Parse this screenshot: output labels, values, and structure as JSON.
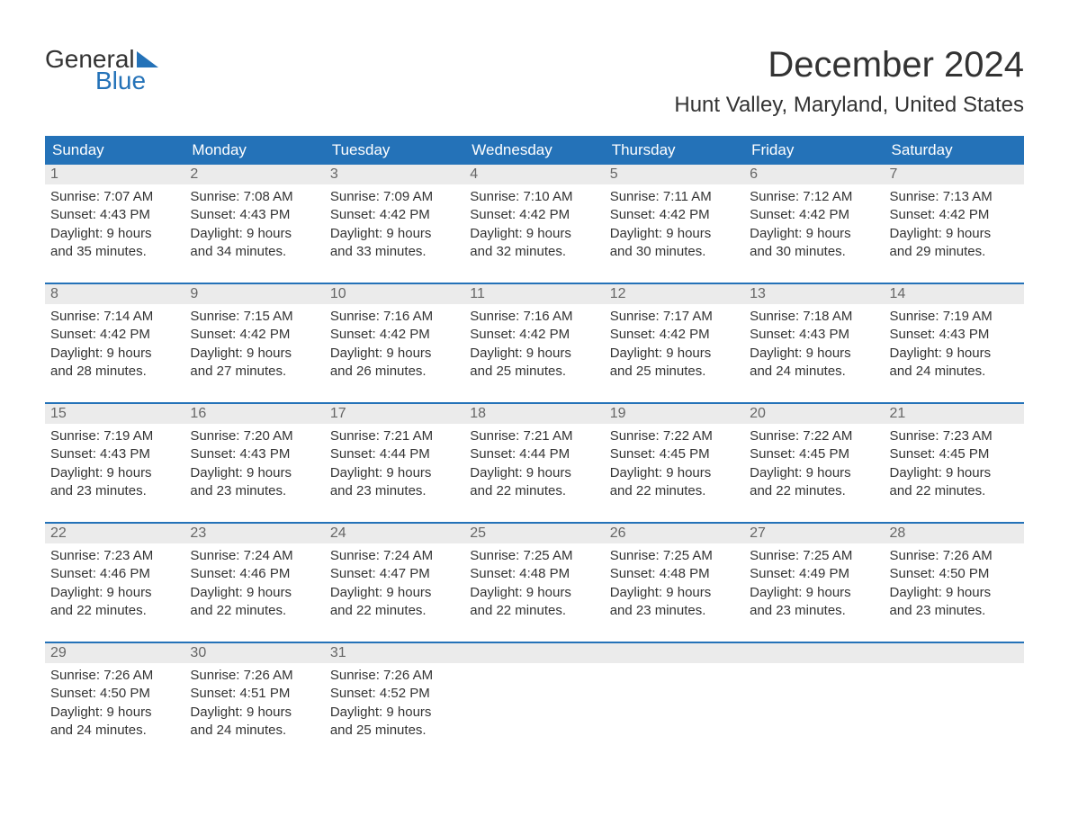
{
  "logo": {
    "word1": "General",
    "word2": "Blue",
    "brand_color": "#2472b8"
  },
  "header": {
    "month_title": "December 2024",
    "location": "Hunt Valley, Maryland, United States"
  },
  "colors": {
    "header_bg": "#2472b8",
    "header_text": "#ffffff",
    "day_number_bg": "#ebebeb",
    "border": "#2472b8",
    "text": "#333333",
    "muted_text": "#666666",
    "background": "#ffffff"
  },
  "weekdays": [
    "Sunday",
    "Monday",
    "Tuesday",
    "Wednesday",
    "Thursday",
    "Friday",
    "Saturday"
  ],
  "weeks": [
    [
      {
        "day": "1",
        "sunrise": "Sunrise: 7:07 AM",
        "sunset": "Sunset: 4:43 PM",
        "daylight1": "Daylight: 9 hours",
        "daylight2": "and 35 minutes."
      },
      {
        "day": "2",
        "sunrise": "Sunrise: 7:08 AM",
        "sunset": "Sunset: 4:43 PM",
        "daylight1": "Daylight: 9 hours",
        "daylight2": "and 34 minutes."
      },
      {
        "day": "3",
        "sunrise": "Sunrise: 7:09 AM",
        "sunset": "Sunset: 4:42 PM",
        "daylight1": "Daylight: 9 hours",
        "daylight2": "and 33 minutes."
      },
      {
        "day": "4",
        "sunrise": "Sunrise: 7:10 AM",
        "sunset": "Sunset: 4:42 PM",
        "daylight1": "Daylight: 9 hours",
        "daylight2": "and 32 minutes."
      },
      {
        "day": "5",
        "sunrise": "Sunrise: 7:11 AM",
        "sunset": "Sunset: 4:42 PM",
        "daylight1": "Daylight: 9 hours",
        "daylight2": "and 30 minutes."
      },
      {
        "day": "6",
        "sunrise": "Sunrise: 7:12 AM",
        "sunset": "Sunset: 4:42 PM",
        "daylight1": "Daylight: 9 hours",
        "daylight2": "and 30 minutes."
      },
      {
        "day": "7",
        "sunrise": "Sunrise: 7:13 AM",
        "sunset": "Sunset: 4:42 PM",
        "daylight1": "Daylight: 9 hours",
        "daylight2": "and 29 minutes."
      }
    ],
    [
      {
        "day": "8",
        "sunrise": "Sunrise: 7:14 AM",
        "sunset": "Sunset: 4:42 PM",
        "daylight1": "Daylight: 9 hours",
        "daylight2": "and 28 minutes."
      },
      {
        "day": "9",
        "sunrise": "Sunrise: 7:15 AM",
        "sunset": "Sunset: 4:42 PM",
        "daylight1": "Daylight: 9 hours",
        "daylight2": "and 27 minutes."
      },
      {
        "day": "10",
        "sunrise": "Sunrise: 7:16 AM",
        "sunset": "Sunset: 4:42 PM",
        "daylight1": "Daylight: 9 hours",
        "daylight2": "and 26 minutes."
      },
      {
        "day": "11",
        "sunrise": "Sunrise: 7:16 AM",
        "sunset": "Sunset: 4:42 PM",
        "daylight1": "Daylight: 9 hours",
        "daylight2": "and 25 minutes."
      },
      {
        "day": "12",
        "sunrise": "Sunrise: 7:17 AM",
        "sunset": "Sunset: 4:42 PM",
        "daylight1": "Daylight: 9 hours",
        "daylight2": "and 25 minutes."
      },
      {
        "day": "13",
        "sunrise": "Sunrise: 7:18 AM",
        "sunset": "Sunset: 4:43 PM",
        "daylight1": "Daylight: 9 hours",
        "daylight2": "and 24 minutes."
      },
      {
        "day": "14",
        "sunrise": "Sunrise: 7:19 AM",
        "sunset": "Sunset: 4:43 PM",
        "daylight1": "Daylight: 9 hours",
        "daylight2": "and 24 minutes."
      }
    ],
    [
      {
        "day": "15",
        "sunrise": "Sunrise: 7:19 AM",
        "sunset": "Sunset: 4:43 PM",
        "daylight1": "Daylight: 9 hours",
        "daylight2": "and 23 minutes."
      },
      {
        "day": "16",
        "sunrise": "Sunrise: 7:20 AM",
        "sunset": "Sunset: 4:43 PM",
        "daylight1": "Daylight: 9 hours",
        "daylight2": "and 23 minutes."
      },
      {
        "day": "17",
        "sunrise": "Sunrise: 7:21 AM",
        "sunset": "Sunset: 4:44 PM",
        "daylight1": "Daylight: 9 hours",
        "daylight2": "and 23 minutes."
      },
      {
        "day": "18",
        "sunrise": "Sunrise: 7:21 AM",
        "sunset": "Sunset: 4:44 PM",
        "daylight1": "Daylight: 9 hours",
        "daylight2": "and 22 minutes."
      },
      {
        "day": "19",
        "sunrise": "Sunrise: 7:22 AM",
        "sunset": "Sunset: 4:45 PM",
        "daylight1": "Daylight: 9 hours",
        "daylight2": "and 22 minutes."
      },
      {
        "day": "20",
        "sunrise": "Sunrise: 7:22 AM",
        "sunset": "Sunset: 4:45 PM",
        "daylight1": "Daylight: 9 hours",
        "daylight2": "and 22 minutes."
      },
      {
        "day": "21",
        "sunrise": "Sunrise: 7:23 AM",
        "sunset": "Sunset: 4:45 PM",
        "daylight1": "Daylight: 9 hours",
        "daylight2": "and 22 minutes."
      }
    ],
    [
      {
        "day": "22",
        "sunrise": "Sunrise: 7:23 AM",
        "sunset": "Sunset: 4:46 PM",
        "daylight1": "Daylight: 9 hours",
        "daylight2": "and 22 minutes."
      },
      {
        "day": "23",
        "sunrise": "Sunrise: 7:24 AM",
        "sunset": "Sunset: 4:46 PM",
        "daylight1": "Daylight: 9 hours",
        "daylight2": "and 22 minutes."
      },
      {
        "day": "24",
        "sunrise": "Sunrise: 7:24 AM",
        "sunset": "Sunset: 4:47 PM",
        "daylight1": "Daylight: 9 hours",
        "daylight2": "and 22 minutes."
      },
      {
        "day": "25",
        "sunrise": "Sunrise: 7:25 AM",
        "sunset": "Sunset: 4:48 PM",
        "daylight1": "Daylight: 9 hours",
        "daylight2": "and 22 minutes."
      },
      {
        "day": "26",
        "sunrise": "Sunrise: 7:25 AM",
        "sunset": "Sunset: 4:48 PM",
        "daylight1": "Daylight: 9 hours",
        "daylight2": "and 23 minutes."
      },
      {
        "day": "27",
        "sunrise": "Sunrise: 7:25 AM",
        "sunset": "Sunset: 4:49 PM",
        "daylight1": "Daylight: 9 hours",
        "daylight2": "and 23 minutes."
      },
      {
        "day": "28",
        "sunrise": "Sunrise: 7:26 AM",
        "sunset": "Sunset: 4:50 PM",
        "daylight1": "Daylight: 9 hours",
        "daylight2": "and 23 minutes."
      }
    ],
    [
      {
        "day": "29",
        "sunrise": "Sunrise: 7:26 AM",
        "sunset": "Sunset: 4:50 PM",
        "daylight1": "Daylight: 9 hours",
        "daylight2": "and 24 minutes."
      },
      {
        "day": "30",
        "sunrise": "Sunrise: 7:26 AM",
        "sunset": "Sunset: 4:51 PM",
        "daylight1": "Daylight: 9 hours",
        "daylight2": "and 24 minutes."
      },
      {
        "day": "31",
        "sunrise": "Sunrise: 7:26 AM",
        "sunset": "Sunset: 4:52 PM",
        "daylight1": "Daylight: 9 hours",
        "daylight2": "and 25 minutes."
      },
      {
        "empty": true
      },
      {
        "empty": true
      },
      {
        "empty": true
      },
      {
        "empty": true
      }
    ]
  ]
}
